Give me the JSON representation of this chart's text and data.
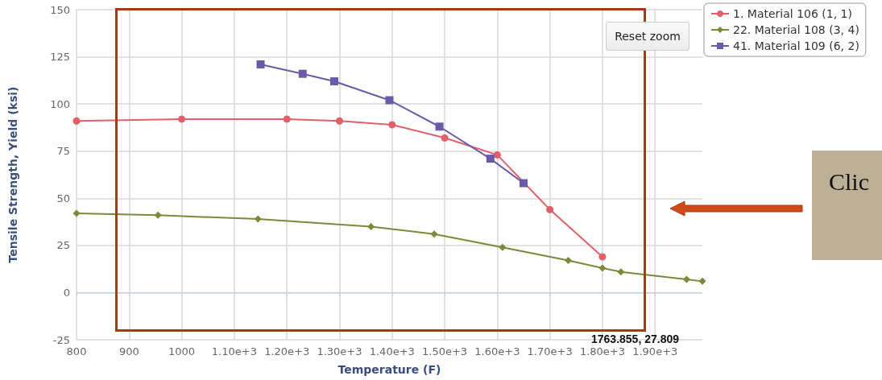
{
  "chart_data": {
    "type": "line",
    "xlabel": "Temperature (F)",
    "ylabel": "Tensile Strength, Yield (ksi)",
    "xlim": [
      800,
      1990
    ],
    "xticks": [
      800,
      900,
      1000,
      {
        "value": 1100,
        "label": "1.10e+3"
      },
      {
        "value": 1200,
        "label": "1.20e+3"
      },
      {
        "value": 1300,
        "label": "1.30e+3"
      },
      {
        "value": 1400,
        "label": "1.40e+3"
      },
      {
        "value": 1500,
        "label": "1.50e+3"
      },
      {
        "value": 1600,
        "label": "1.60e+3"
      },
      {
        "value": 1700,
        "label": "1.70e+3"
      },
      {
        "value": 1800,
        "label": "1.80e+3"
      },
      {
        "value": 1900,
        "label": "1.90e+3"
      }
    ],
    "ylim": [
      -25,
      150
    ],
    "yticks": [
      -25,
      0,
      25,
      50,
      75,
      100,
      125,
      150
    ],
    "grid": true,
    "legend": "top right",
    "series": [
      {
        "name": "1. Material 106 (1, 1)",
        "color": "#e0606a",
        "marker": "circle",
        "x": [
          800,
          1000,
          1200,
          1300,
          1400,
          1500,
          1600,
          1700,
          1800
        ],
        "values": [
          91,
          92,
          92,
          91,
          89,
          82,
          73,
          44,
          19
        ]
      },
      {
        "name": "22. Material 108 (3, 4)",
        "color": "#7a8a3a",
        "marker": "diamond",
        "x": [
          800,
          955,
          1145,
          1360,
          1480,
          1610,
          1735,
          1800,
          1835,
          1960,
          1990
        ],
        "values": [
          42,
          41,
          39,
          35,
          31,
          24,
          17,
          13,
          11,
          7,
          6
        ]
      },
      {
        "name": "41. Material 109 (6, 2)",
        "color": "#6a5aa8",
        "marker": "square",
        "x": [
          1150,
          1230,
          1290,
          1395,
          1490,
          1587,
          1650
        ],
        "values": [
          121,
          116,
          112,
          102,
          88,
          71,
          58
        ]
      }
    ],
    "annotations": [
      "Reset zoom",
      "1763.855, 27.809",
      "Clic"
    ]
  }
}
